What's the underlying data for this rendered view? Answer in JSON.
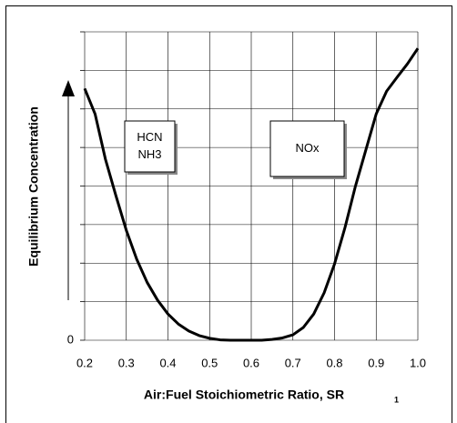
{
  "chart_data": {
    "type": "line",
    "xlabel": "Air:Fuel Stoichiometric Ratio, SR",
    "xlabel_subscript": "1",
    "ylabel": "Equilibrium Concentration",
    "annotations": [
      [
        "HCN",
        "NH3"
      ],
      [
        "NOx"
      ]
    ],
    "x": [
      0.2,
      0.225,
      0.25,
      0.275,
      0.3,
      0.325,
      0.35,
      0.375,
      0.4,
      0.425,
      0.45,
      0.475,
      0.5,
      0.525,
      0.55,
      0.575,
      0.6,
      0.625,
      0.65,
      0.675,
      0.7,
      0.725,
      0.75,
      0.775,
      0.8,
      0.825,
      0.85,
      0.875,
      0.9,
      0.925,
      0.95,
      0.975,
      1.0
    ],
    "series": [
      {
        "color": "#000000",
        "values": [
          6.53,
          5.87,
          4.69,
          3.75,
          2.85,
          2.1,
          1.5,
          1.04,
          0.68,
          0.42,
          0.24,
          0.12,
          0.05,
          0.01,
          0,
          0,
          0,
          0,
          0.02,
          0.06,
          0.14,
          0.33,
          0.68,
          1.23,
          1.98,
          2.92,
          3.99,
          4.93,
          5.87,
          6.46,
          6.82,
          7.17,
          7.57
        ]
      }
    ],
    "xlim": [
      0.2,
      1.0
    ],
    "xticks": [
      0.2,
      0.3,
      0.4,
      0.5,
      0.6,
      0.7,
      0.8,
      0.9,
      {
        "value": 1.0,
        "label": "1.0"
      }
    ],
    "ylim": [
      0,
      8
    ],
    "yticks": [
      0,
      {
        "value": 1,
        "label": null
      },
      {
        "value": 2,
        "label": null
      },
      {
        "value": 3,
        "label": null
      },
      {
        "value": 4,
        "label": null
      },
      {
        "value": 5,
        "label": null
      },
      {
        "value": 6,
        "label": null
      },
      {
        "value": 7,
        "label": null
      },
      {
        "value": 8,
        "label": null
      }
    ],
    "grid": true
  }
}
